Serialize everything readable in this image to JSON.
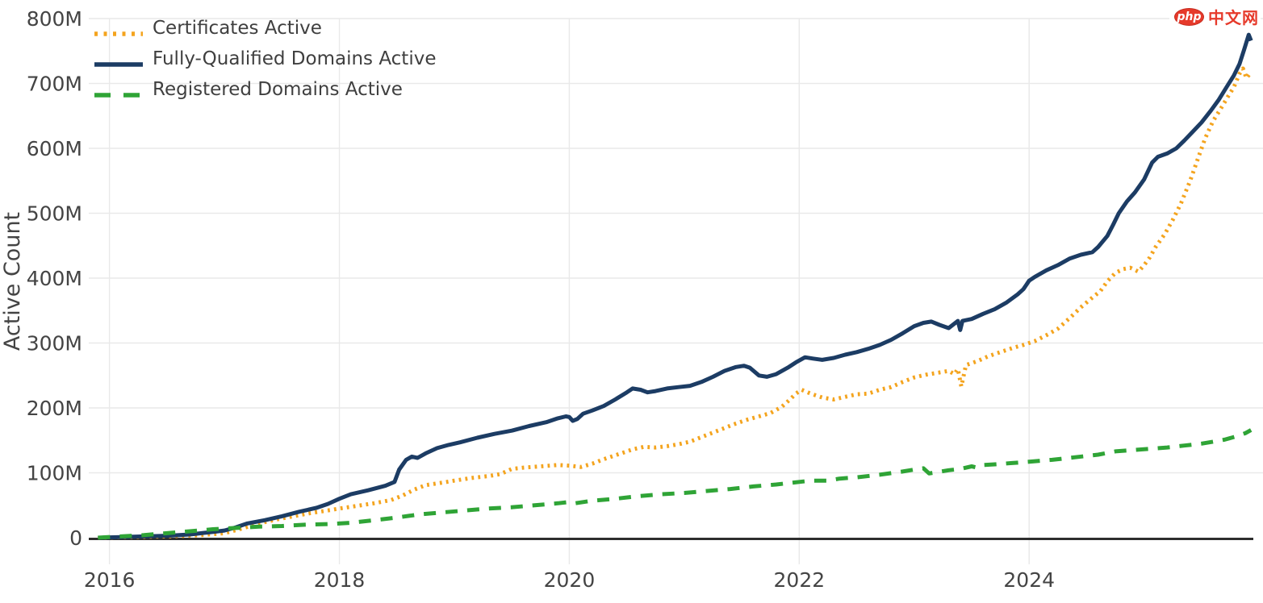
{
  "brand": {
    "badge": "php",
    "text": "中文网",
    "logo_color": "#e63a2b"
  },
  "chart_data": {
    "type": "line",
    "title": "",
    "xlabel": "",
    "ylabel": "Active Count",
    "unit": "M",
    "grid": true,
    "legend_position": "top-left",
    "x_range": [
      2015.82,
      2025.95
    ],
    "y_range": [
      0,
      800
    ],
    "x_ticks": [
      {
        "value": 2016,
        "label": "2016"
      },
      {
        "value": 2018,
        "label": "2018"
      },
      {
        "value": 2020,
        "label": "2020"
      },
      {
        "value": 2022,
        "label": "2022"
      },
      {
        "value": 2024,
        "label": "2024"
      }
    ],
    "y_ticks": [
      {
        "value": 0,
        "label": "0"
      },
      {
        "value": 100,
        "label": "100M"
      },
      {
        "value": 200,
        "label": "200M"
      },
      {
        "value": 300,
        "label": "300M"
      },
      {
        "value": 400,
        "label": "400M"
      },
      {
        "value": 500,
        "label": "500M"
      },
      {
        "value": 600,
        "label": "600M"
      },
      {
        "value": 700,
        "label": "700M"
      },
      {
        "value": 800,
        "label": "800M"
      }
    ],
    "colors": {
      "grid": "#e9e9e9",
      "axis_line": "#2e2e2e",
      "tick_text": "#444444"
    },
    "series": [
      {
        "name": "Certificates Active",
        "color": "#f4a41e",
        "dash": "dotted",
        "points": [
          [
            2015.9,
            0
          ],
          [
            2016.2,
            1
          ],
          [
            2016.5,
            2
          ],
          [
            2016.8,
            4
          ],
          [
            2017.0,
            7
          ],
          [
            2017.15,
            14
          ],
          [
            2017.3,
            22
          ],
          [
            2017.45,
            28
          ],
          [
            2017.6,
            33
          ],
          [
            2017.75,
            38
          ],
          [
            2017.9,
            42
          ],
          [
            2018.0,
            45
          ],
          [
            2018.15,
            49
          ],
          [
            2018.3,
            53
          ],
          [
            2018.45,
            58
          ],
          [
            2018.55,
            65
          ],
          [
            2018.65,
            74
          ],
          [
            2018.75,
            81
          ],
          [
            2018.9,
            85
          ],
          [
            2019.0,
            88
          ],
          [
            2019.15,
            92
          ],
          [
            2019.3,
            95
          ],
          [
            2019.4,
            98
          ],
          [
            2019.5,
            106
          ],
          [
            2019.6,
            108
          ],
          [
            2019.75,
            110
          ],
          [
            2019.9,
            112
          ],
          [
            2020.0,
            111
          ],
          [
            2020.1,
            109
          ],
          [
            2020.2,
            114
          ],
          [
            2020.3,
            121
          ],
          [
            2020.45,
            130
          ],
          [
            2020.55,
            136
          ],
          [
            2020.65,
            140
          ],
          [
            2020.75,
            139
          ],
          [
            2020.85,
            141
          ],
          [
            2020.95,
            144
          ],
          [
            2021.05,
            148
          ],
          [
            2021.15,
            155
          ],
          [
            2021.25,
            162
          ],
          [
            2021.35,
            169
          ],
          [
            2021.45,
            176
          ],
          [
            2021.55,
            182
          ],
          [
            2021.65,
            187
          ],
          [
            2021.75,
            192
          ],
          [
            2021.85,
            202
          ],
          [
            2021.92,
            213
          ],
          [
            2021.97,
            222
          ],
          [
            2022.02,
            228
          ],
          [
            2022.1,
            222
          ],
          [
            2022.2,
            216
          ],
          [
            2022.3,
            213
          ],
          [
            2022.4,
            217
          ],
          [
            2022.5,
            221
          ],
          [
            2022.6,
            222
          ],
          [
            2022.7,
            228
          ],
          [
            2022.8,
            232
          ],
          [
            2022.9,
            240
          ],
          [
            2023.0,
            247
          ],
          [
            2023.1,
            251
          ],
          [
            2023.2,
            254
          ],
          [
            2023.3,
            257
          ],
          [
            2023.35,
            252
          ],
          [
            2023.38,
            260
          ],
          [
            2023.41,
            233
          ],
          [
            2023.45,
            266
          ],
          [
            2023.55,
            272
          ],
          [
            2023.65,
            280
          ],
          [
            2023.75,
            286
          ],
          [
            2023.85,
            292
          ],
          [
            2023.95,
            297
          ],
          [
            2024.05,
            303
          ],
          [
            2024.15,
            312
          ],
          [
            2024.25,
            322
          ],
          [
            2024.35,
            338
          ],
          [
            2024.45,
            355
          ],
          [
            2024.55,
            370
          ],
          [
            2024.62,
            380
          ],
          [
            2024.68,
            395
          ],
          [
            2024.75,
            408
          ],
          [
            2024.82,
            414
          ],
          [
            2024.88,
            416
          ],
          [
            2024.95,
            410
          ],
          [
            2025.0,
            420
          ],
          [
            2025.05,
            432
          ],
          [
            2025.1,
            448
          ],
          [
            2025.18,
            468
          ],
          [
            2025.25,
            490
          ],
          [
            2025.32,
            515
          ],
          [
            2025.4,
            550
          ],
          [
            2025.47,
            585
          ],
          [
            2025.53,
            615
          ],
          [
            2025.6,
            642
          ],
          [
            2025.67,
            662
          ],
          [
            2025.73,
            680
          ],
          [
            2025.78,
            694
          ],
          [
            2025.83,
            715
          ],
          [
            2025.86,
            723
          ],
          [
            2025.89,
            708
          ],
          [
            2025.93,
            718
          ]
        ]
      },
      {
        "name": "Fully-Qualified Domains Active",
        "color": "#1c3c64",
        "dash": "solid",
        "points": [
          [
            2015.9,
            0
          ],
          [
            2016.1,
            1
          ],
          [
            2016.3,
            2
          ],
          [
            2016.5,
            3
          ],
          [
            2016.7,
            5
          ],
          [
            2016.85,
            8
          ],
          [
            2017.0,
            11
          ],
          [
            2017.1,
            16
          ],
          [
            2017.2,
            22
          ],
          [
            2017.35,
            27
          ],
          [
            2017.5,
            33
          ],
          [
            2017.65,
            40
          ],
          [
            2017.8,
            46
          ],
          [
            2017.9,
            52
          ],
          [
            2018.0,
            60
          ],
          [
            2018.1,
            67
          ],
          [
            2018.25,
            73
          ],
          [
            2018.4,
            80
          ],
          [
            2018.48,
            86
          ],
          [
            2018.52,
            105
          ],
          [
            2018.58,
            120
          ],
          [
            2018.63,
            125
          ],
          [
            2018.68,
            123
          ],
          [
            2018.75,
            130
          ],
          [
            2018.85,
            138
          ],
          [
            2018.95,
            143
          ],
          [
            2019.05,
            147
          ],
          [
            2019.2,
            154
          ],
          [
            2019.35,
            160
          ],
          [
            2019.5,
            165
          ],
          [
            2019.65,
            172
          ],
          [
            2019.8,
            178
          ],
          [
            2019.9,
            184
          ],
          [
            2019.97,
            187
          ],
          [
            2020.0,
            186
          ],
          [
            2020.03,
            180
          ],
          [
            2020.07,
            183
          ],
          [
            2020.12,
            191
          ],
          [
            2020.2,
            196
          ],
          [
            2020.3,
            203
          ],
          [
            2020.4,
            213
          ],
          [
            2020.5,
            224
          ],
          [
            2020.55,
            230
          ],
          [
            2020.62,
            228
          ],
          [
            2020.68,
            224
          ],
          [
            2020.75,
            226
          ],
          [
            2020.85,
            230
          ],
          [
            2020.95,
            232
          ],
          [
            2021.05,
            234
          ],
          [
            2021.15,
            240
          ],
          [
            2021.25,
            248
          ],
          [
            2021.35,
            257
          ],
          [
            2021.45,
            263
          ],
          [
            2021.52,
            265
          ],
          [
            2021.57,
            262
          ],
          [
            2021.65,
            250
          ],
          [
            2021.72,
            248
          ],
          [
            2021.8,
            252
          ],
          [
            2021.9,
            262
          ],
          [
            2021.97,
            270
          ],
          [
            2022.05,
            278
          ],
          [
            2022.12,
            276
          ],
          [
            2022.2,
            274
          ],
          [
            2022.3,
            277
          ],
          [
            2022.4,
            282
          ],
          [
            2022.5,
            286
          ],
          [
            2022.6,
            291
          ],
          [
            2022.7,
            297
          ],
          [
            2022.8,
            305
          ],
          [
            2022.9,
            315
          ],
          [
            2023.0,
            326
          ],
          [
            2023.08,
            331
          ],
          [
            2023.15,
            333
          ],
          [
            2023.22,
            328
          ],
          [
            2023.3,
            323
          ],
          [
            2023.38,
            334
          ],
          [
            2023.4,
            320
          ],
          [
            2023.42,
            334
          ],
          [
            2023.5,
            337
          ],
          [
            2023.6,
            345
          ],
          [
            2023.7,
            352
          ],
          [
            2023.8,
            362
          ],
          [
            2023.9,
            375
          ],
          [
            2023.95,
            383
          ],
          [
            2024.0,
            396
          ],
          [
            2024.05,
            402
          ],
          [
            2024.15,
            412
          ],
          [
            2024.25,
            420
          ],
          [
            2024.35,
            430
          ],
          [
            2024.45,
            436
          ],
          [
            2024.55,
            440
          ],
          [
            2024.6,
            448
          ],
          [
            2024.68,
            465
          ],
          [
            2024.73,
            482
          ],
          [
            2024.78,
            500
          ],
          [
            2024.85,
            518
          ],
          [
            2024.92,
            532
          ],
          [
            2025.0,
            552
          ],
          [
            2025.07,
            578
          ],
          [
            2025.12,
            587
          ],
          [
            2025.2,
            592
          ],
          [
            2025.28,
            600
          ],
          [
            2025.35,
            612
          ],
          [
            2025.42,
            625
          ],
          [
            2025.5,
            640
          ],
          [
            2025.58,
            658
          ],
          [
            2025.65,
            675
          ],
          [
            2025.72,
            695
          ],
          [
            2025.78,
            712
          ],
          [
            2025.83,
            730
          ],
          [
            2025.87,
            752
          ],
          [
            2025.91,
            775
          ],
          [
            2025.93,
            766
          ]
        ]
      },
      {
        "name": "Registered Domains Active",
        "color": "#2fa436",
        "dash": "dashed",
        "points": [
          [
            2015.9,
            0
          ],
          [
            2016.1,
            2
          ],
          [
            2016.3,
            4
          ],
          [
            2016.5,
            7
          ],
          [
            2016.7,
            10
          ],
          [
            2016.9,
            13
          ],
          [
            2017.1,
            15
          ],
          [
            2017.3,
            17
          ],
          [
            2017.5,
            18
          ],
          [
            2017.7,
            20
          ],
          [
            2017.9,
            21
          ],
          [
            2018.1,
            23
          ],
          [
            2018.3,
            27
          ],
          [
            2018.5,
            31
          ],
          [
            2018.7,
            36
          ],
          [
            2018.9,
            39
          ],
          [
            2019.1,
            42
          ],
          [
            2019.3,
            45
          ],
          [
            2019.5,
            47
          ],
          [
            2019.7,
            50
          ],
          [
            2019.9,
            53
          ],
          [
            2020.0,
            55
          ],
          [
            2020.05,
            53
          ],
          [
            2020.2,
            57
          ],
          [
            2020.4,
            60
          ],
          [
            2020.6,
            64
          ],
          [
            2020.8,
            67
          ],
          [
            2021.0,
            69
          ],
          [
            2021.2,
            72
          ],
          [
            2021.4,
            75
          ],
          [
            2021.6,
            79
          ],
          [
            2021.8,
            82
          ],
          [
            2022.0,
            86
          ],
          [
            2022.1,
            88
          ],
          [
            2022.25,
            88
          ],
          [
            2022.35,
            91
          ],
          [
            2022.5,
            93
          ],
          [
            2022.7,
            97
          ],
          [
            2022.9,
            102
          ],
          [
            2023.0,
            105
          ],
          [
            2023.08,
            107
          ],
          [
            2023.13,
            99
          ],
          [
            2023.2,
            101
          ],
          [
            2023.3,
            104
          ],
          [
            2023.4,
            106
          ],
          [
            2023.5,
            110
          ],
          [
            2023.55,
            108
          ],
          [
            2023.6,
            112
          ],
          [
            2023.7,
            113
          ],
          [
            2023.85,
            115
          ],
          [
            2024.0,
            117
          ],
          [
            2024.2,
            120
          ],
          [
            2024.4,
            124
          ],
          [
            2024.6,
            128
          ],
          [
            2024.75,
            133
          ],
          [
            2024.9,
            135
          ],
          [
            2025.05,
            137
          ],
          [
            2025.2,
            139
          ],
          [
            2025.35,
            142
          ],
          [
            2025.5,
            145
          ],
          [
            2025.6,
            148
          ],
          [
            2025.7,
            151
          ],
          [
            2025.8,
            156
          ],
          [
            2025.88,
            161
          ],
          [
            2025.93,
            166
          ]
        ]
      }
    ]
  }
}
